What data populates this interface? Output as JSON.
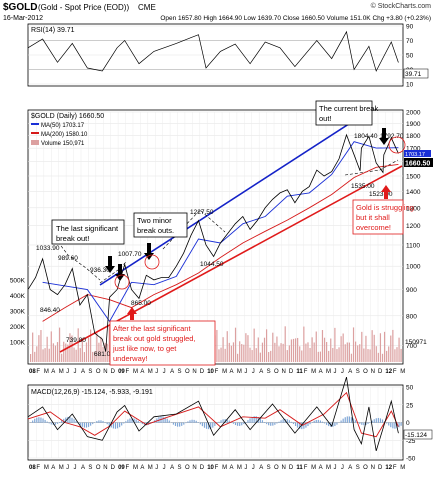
{
  "header": {
    "symbol": "$GOLD",
    "description": "(Gold - Spot Price (EOD))",
    "exchange": "CME",
    "source": "© StockCharts.com",
    "date": "16-Mar-2012",
    "quote": "Open 1657.80  High 1664.90  Low 1639.70  Close 1660.50  Volume 151.0K  Chg +3.80 (+0.23%)"
  },
  "rsi": {
    "label": "RSI(14) 39.71",
    "last_label": "39.71",
    "ticks": [
      {
        "v": 90,
        "label": "90"
      },
      {
        "v": 70,
        "label": "70"
      },
      {
        "v": 50,
        "label": "50"
      },
      {
        "v": 30,
        "label": "30"
      },
      {
        "v": 10,
        "label": "10"
      }
    ],
    "overbought": 70,
    "oversold": 30
  },
  "price": {
    "legend": [
      "$GOLD (Daily) 1660.50",
      "MA(50) 1703.17",
      "MA(200) 1580.10",
      "Volume 150,971"
    ],
    "price_ticks": [
      "2000",
      "1900",
      "1800",
      "1700",
      "1600",
      "1500",
      "1400",
      "1300",
      "1200",
      "1100",
      "1000",
      "900",
      "800",
      "700"
    ],
    "volume_ticks": [
      "500K",
      "400K",
      "300K",
      "200K",
      "100K"
    ],
    "volume_last": "150971",
    "last_price": "1660.50",
    "ma50_last": "1703.17"
  },
  "macd": {
    "label": "MACD(12,26,9) -15.124, -5.933, -9.191",
    "ticks": [
      {
        "v": 50,
        "label": "50"
      },
      {
        "v": 25,
        "label": "25"
      },
      {
        "v": 0,
        "label": "0"
      },
      {
        "v": -25,
        "label": "-25"
      },
      {
        "v": -50,
        "label": "-50"
      }
    ],
    "last_label": "-15.124"
  },
  "x_axis": {
    "labels": [
      "08",
      "F",
      "M",
      "A",
      "M",
      "J",
      "J",
      "A",
      "S",
      "O",
      "N",
      "D",
      "09",
      "F",
      "M",
      "A",
      "M",
      "J",
      "J",
      "A",
      "S",
      "O",
      "N",
      "D",
      "10",
      "F",
      "M",
      "A",
      "M",
      "J",
      "J",
      "A",
      "S",
      "O",
      "N",
      "D",
      "11",
      "F",
      "M",
      "A",
      "M",
      "J",
      "J",
      "A",
      "S",
      "O",
      "N",
      "D",
      "12",
      "F",
      "M"
    ],
    "bold": [
      "08",
      "09",
      "10",
      "11",
      "12"
    ]
  },
  "annotations": {
    "last_break": "The last significant break out!",
    "minor_break": "Two minor break outs.",
    "current_break": "The current break out!",
    "struggle_note": "After the last significant break out gold struggled, just like now, to get underway!",
    "struggling": "Gold is struggling but it shall overcome!"
  },
  "chart_data": [
    {
      "type": "line",
      "title": "$GOLD (Gold - Spot Price (EOD)) CME",
      "subtitle": "16-Mar-2012",
      "x_label": "",
      "y_label": "",
      "x_range": [
        "2008-01",
        "2012-03"
      ],
      "y_range": [
        650,
        2000
      ],
      "grid": true,
      "legend_placement": "top-left",
      "series": [
        {
          "name": "$GOLD (Daily) 1660.50",
          "color": "#000000",
          "points": [
            {
              "x": "2008-01",
              "y": 900
            },
            {
              "x": "2008-02",
              "y": 950
            },
            {
              "x": "2008-03",
              "y": 1033.9
            },
            {
              "x": "2008-04",
              "y": 900
            },
            {
              "x": "2008-05",
              "y": 880
            },
            {
              "x": "2008-06",
              "y": 920
            },
            {
              "x": "2008-07",
              "y": 989.6
            },
            {
              "x": "2008-08",
              "y": 840
            },
            {
              "x": "2008-09",
              "y": 880
            },
            {
              "x": "2008-10",
              "y": 739.8
            },
            {
              "x": "2008-11",
              "y": 720
            },
            {
              "x": "2008-11-15",
              "y": 681
            },
            {
              "x": "2008-12",
              "y": 870
            },
            {
              "x": "2009-01",
              "y": 900
            },
            {
              "x": "2009-02",
              "y": 1007.7
            },
            {
              "x": "2009-03",
              "y": 900
            },
            {
              "x": "2009-04",
              "y": 865
            },
            {
              "x": "2009-05",
              "y": 960
            },
            {
              "x": "2009-06",
              "y": 940
            },
            {
              "x": "2009-07",
              "y": 950
            },
            {
              "x": "2009-08",
              "y": 950
            },
            {
              "x": "2009-09",
              "y": 1000
            },
            {
              "x": "2009-10",
              "y": 1060
            },
            {
              "x": "2009-11",
              "y": 1150
            },
            {
              "x": "2009-12",
              "y": 1227.5
            },
            {
              "x": "2010-01",
              "y": 1100
            },
            {
              "x": "2010-02",
              "y": 1044.5
            },
            {
              "x": "2010-03",
              "y": 1110
            },
            {
              "x": "2010-04",
              "y": 1160
            },
            {
              "x": "2010-05",
              "y": 1210
            },
            {
              "x": "2010-06",
              "y": 1250
            },
            {
              "x": "2010-07",
              "y": 1180
            },
            {
              "x": "2010-08",
              "y": 1230
            },
            {
              "x": "2010-09",
              "y": 1300
            },
            {
              "x": "2010-10",
              "y": 1350
            },
            {
              "x": "2010-11",
              "y": 1390
            },
            {
              "x": "2010-12",
              "y": 1410
            },
            {
              "x": "2011-01",
              "y": 1330
            },
            {
              "x": "2011-02",
              "y": 1400
            },
            {
              "x": "2011-03",
              "y": 1430
            },
            {
              "x": "2011-04",
              "y": 1540
            },
            {
              "x": "2011-05",
              "y": 1500
            },
            {
              "x": "2011-06",
              "y": 1530
            },
            {
              "x": "2011-07",
              "y": 1620
            },
            {
              "x": "2011-08",
              "y": 1804.4
            },
            {
              "x": "2011-09",
              "y": 1650
            },
            {
              "x": "2011-09-26",
              "y": 1535
            },
            {
              "x": "2011-10",
              "y": 1700
            },
            {
              "x": "2011-11",
              "y": 1792.7
            },
            {
              "x": "2011-12",
              "y": 1590
            },
            {
              "x": "2011-12-29",
              "y": 1523.9
            },
            {
              "x": "2012-01",
              "y": 1650
            },
            {
              "x": "2012-02",
              "y": 1780
            },
            {
              "x": "2012-03",
              "y": 1660.5
            }
          ]
        },
        {
          "name": "MA(50) 1703.17",
          "color": "#1a2fd6",
          "points": [
            {
              "x": "2008-03",
              "y": 930
            },
            {
              "x": "2008-06",
              "y": 915
            },
            {
              "x": "2008-09",
              "y": 900
            },
            {
              "x": "2008-12",
              "y": 780
            },
            {
              "x": "2009-03",
              "y": 930
            },
            {
              "x": "2009-06",
              "y": 920
            },
            {
              "x": "2009-09",
              "y": 955
            },
            {
              "x": "2009-12",
              "y": 1130
            },
            {
              "x": "2010-03",
              "y": 1110
            },
            {
              "x": "2010-06",
              "y": 1210
            },
            {
              "x": "2010-09",
              "y": 1250
            },
            {
              "x": "2010-12",
              "y": 1370
            },
            {
              "x": "2011-03",
              "y": 1390
            },
            {
              "x": "2011-06",
              "y": 1510
            },
            {
              "x": "2011-09",
              "y": 1750
            },
            {
              "x": "2011-12",
              "y": 1700
            },
            {
              "x": "2012-03",
              "y": 1703.17
            }
          ]
        },
        {
          "name": "MA(200) 1580.10",
          "color": "#d61a1a",
          "points": [
            {
              "x": "2008-03",
              "y": 780
            },
            {
              "x": "2008-06",
              "y": 830
            },
            {
              "x": "2008-09",
              "y": 880
            },
            {
              "x": "2008-12",
              "y": 860
            },
            {
              "x": "2009-03",
              "y": 830
            },
            {
              "x": "2009-06",
              "y": 880
            },
            {
              "x": "2009-09",
              "y": 920
            },
            {
              "x": "2009-12",
              "y": 970
            },
            {
              "x": "2010-03",
              "y": 1040
            },
            {
              "x": "2010-06",
              "y": 1110
            },
            {
              "x": "2010-09",
              "y": 1170
            },
            {
              "x": "2010-12",
              "y": 1230
            },
            {
              "x": "2011-03",
              "y": 1300
            },
            {
              "x": "2011-06",
              "y": 1380
            },
            {
              "x": "2011-09",
              "y": 1490
            },
            {
              "x": "2011-12",
              "y": 1560
            },
            {
              "x": "2012-03",
              "y": 1580.1
            }
          ]
        }
      ]
    },
    {
      "type": "line",
      "title": "RSI(14) 39.71",
      "x_label": "",
      "y_label": "",
      "x_range": [
        "2008-01",
        "2012-03"
      ],
      "y_range": [
        10,
        90
      ],
      "grid": true,
      "series": [
        {
          "name": "RSI(14) 39.71",
          "color": "#000000",
          "points": [
            {
              "x": "2008-01",
              "y": 60
            },
            {
              "x": "2008-03",
              "y": 72
            },
            {
              "x": "2008-05",
              "y": 40
            },
            {
              "x": "2008-07",
              "y": 66
            },
            {
              "x": "2008-09",
              "y": 32
            },
            {
              "x": "2008-11",
              "y": 28
            },
            {
              "x": "2009-01",
              "y": 60
            },
            {
              "x": "2009-02",
              "y": 70
            },
            {
              "x": "2009-04",
              "y": 38
            },
            {
              "x": "2009-06",
              "y": 55
            },
            {
              "x": "2009-09",
              "y": 66
            },
            {
              "x": "2009-11",
              "y": 74
            },
            {
              "x": "2009-12",
              "y": 78
            },
            {
              "x": "2010-01",
              "y": 32
            },
            {
              "x": "2010-03",
              "y": 55
            },
            {
              "x": "2010-05",
              "y": 65
            },
            {
              "x": "2010-07",
              "y": 38
            },
            {
              "x": "2010-09",
              "y": 68
            },
            {
              "x": "2010-11",
              "y": 60
            },
            {
              "x": "2011-01",
              "y": 34
            },
            {
              "x": "2011-04",
              "y": 70
            },
            {
              "x": "2011-06",
              "y": 45
            },
            {
              "x": "2011-08",
              "y": 82
            },
            {
              "x": "2011-09",
              "y": 30
            },
            {
              "x": "2011-11",
              "y": 62
            },
            {
              "x": "2011-12",
              "y": 28
            },
            {
              "x": "2012-02",
              "y": 68
            },
            {
              "x": "2012-03",
              "y": 39.71
            }
          ]
        }
      ]
    },
    {
      "type": "line",
      "title": "MACD(12,26,9) -15.124, -5.933, -9.191",
      "x_label": "",
      "y_label": "",
      "x_range": [
        "2008-01",
        "2012-03"
      ],
      "y_range": [
        -50,
        50
      ],
      "grid": true,
      "series": [
        {
          "name": "MACD(12,26,9)",
          "color": "#000000",
          "points": [
            {
              "x": "2008-01",
              "y": 8
            },
            {
              "x": "2008-03",
              "y": 22
            },
            {
              "x": "2008-05",
              "y": -10
            },
            {
              "x": "2008-07",
              "y": 12
            },
            {
              "x": "2008-09",
              "y": -20
            },
            {
              "x": "2008-11",
              "y": -25
            },
            {
              "x": "2009-01",
              "y": 15
            },
            {
              "x": "2009-02",
              "y": 24
            },
            {
              "x": "2009-04",
              "y": -12
            },
            {
              "x": "2009-06",
              "y": 8
            },
            {
              "x": "2009-09",
              "y": 12
            },
            {
              "x": "2009-12",
              "y": 30
            },
            {
              "x": "2010-02",
              "y": -18
            },
            {
              "x": "2010-05",
              "y": 18
            },
            {
              "x": "2010-07",
              "y": -10
            },
            {
              "x": "2010-10",
              "y": 26
            },
            {
              "x": "2011-01",
              "y": -15
            },
            {
              "x": "2011-04",
              "y": 22
            },
            {
              "x": "2011-06",
              "y": -5
            },
            {
              "x": "2011-08",
              "y": 64
            },
            {
              "x": "2011-09",
              "y": -10
            },
            {
              "x": "2011-10",
              "y": -30
            },
            {
              "x": "2011-11",
              "y": 22
            },
            {
              "x": "2011-12",
              "y": -40
            },
            {
              "x": "2012-02",
              "y": 30
            },
            {
              "x": "2012-03",
              "y": -15.124
            }
          ]
        },
        {
          "name": "Signal",
          "color": "#d61a1a",
          "points": [
            {
              "x": "2008-01",
              "y": 5
            },
            {
              "x": "2008-04",
              "y": 15
            },
            {
              "x": "2008-06",
              "y": 0
            },
            {
              "x": "2008-08",
              "y": -6
            },
            {
              "x": "2008-10",
              "y": -18
            },
            {
              "x": "2008-12",
              "y": -5
            },
            {
              "x": "2009-02",
              "y": 16
            },
            {
              "x": "2009-05",
              "y": -3
            },
            {
              "x": "2009-08",
              "y": 8
            },
            {
              "x": "2009-12",
              "y": 22
            },
            {
              "x": "2010-03",
              "y": -6
            },
            {
              "x": "2010-06",
              "y": 8
            },
            {
              "x": "2010-09",
              "y": 6
            },
            {
              "x": "2010-11",
              "y": 18
            },
            {
              "x": "2011-02",
              "y": -4
            },
            {
              "x": "2011-05",
              "y": 12
            },
            {
              "x": "2011-08",
              "y": 42
            },
            {
              "x": "2011-10",
              "y": -15
            },
            {
              "x": "2011-12",
              "y": -20
            },
            {
              "x": "2012-02",
              "y": 16
            },
            {
              "x": "2012-03",
              "y": -5.933
            }
          ]
        }
      ]
    }
  ]
}
